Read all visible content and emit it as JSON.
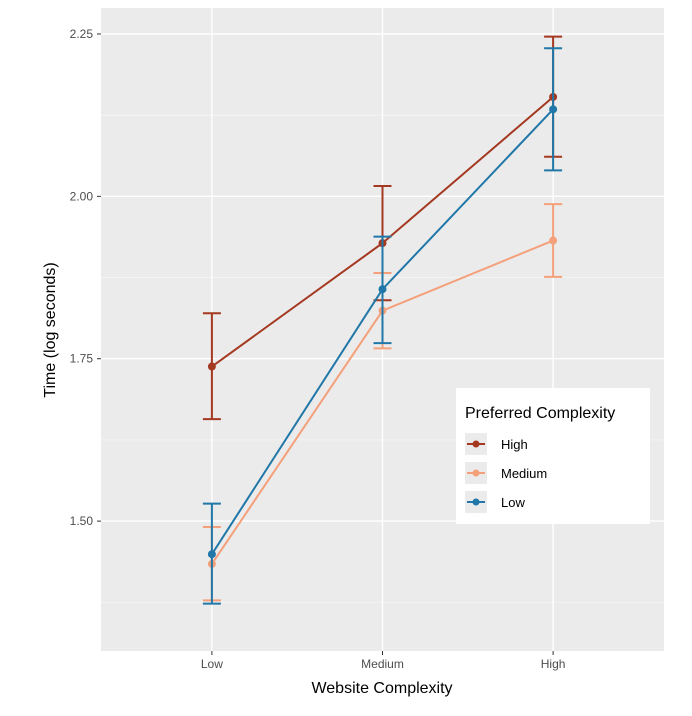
{
  "chart_data": {
    "type": "line",
    "title": "",
    "xlabel": "Website Complexity",
    "ylabel": "Time (log seconds)",
    "categories": [
      "Low",
      "Medium",
      "High"
    ],
    "ylim": [
      1.3,
      2.29
    ],
    "yticks": [
      "1.50",
      "1.75",
      "2.00",
      "2.25"
    ],
    "grid": true,
    "legend": {
      "title": "Preferred Complexity",
      "position": "right-bottom"
    },
    "series": [
      {
        "name": "High",
        "color": "#A43820",
        "values": [
          1.738,
          1.928,
          2.153
        ],
        "error_low": [
          1.657,
          1.84,
          2.061
        ],
        "error_high": [
          1.82,
          2.016,
          2.246
        ]
      },
      {
        "name": "Medium",
        "color": "#F4A07A",
        "values": [
          1.434,
          1.824,
          1.932
        ],
        "error_low": [
          1.378,
          1.766,
          1.876
        ],
        "error_high": [
          1.491,
          1.882,
          1.988
        ]
      },
      {
        "name": "Low",
        "color": "#2077A8",
        "values": [
          1.449,
          1.857,
          2.134
        ],
        "error_low": [
          1.373,
          1.774,
          2.04
        ],
        "error_high": [
          1.527,
          1.938,
          2.228
        ]
      }
    ]
  }
}
